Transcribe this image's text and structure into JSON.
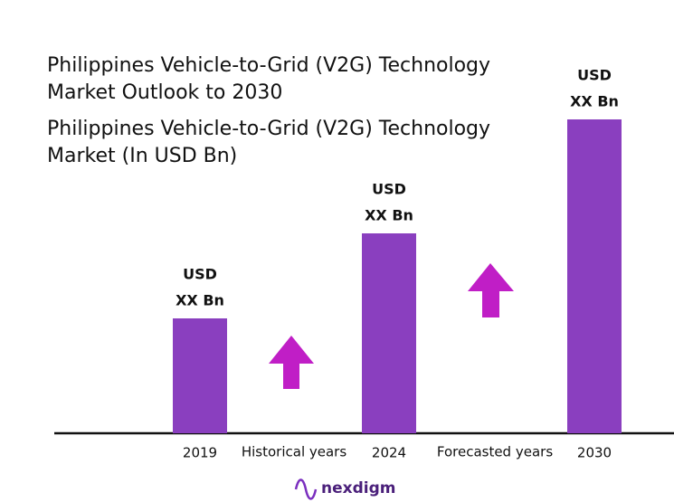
{
  "chart_data": {
    "type": "bar",
    "title": "Philippines Vehicle-to-Grid (V2G) Technology Market Outlook to 2030",
    "subtitle": "Philippines Vehicle-to-Grid (V2G) Technology Market (In USD Bn)",
    "categories": [
      "2019",
      "2024",
      "2030"
    ],
    "values": [
      127,
      221,
      347
    ],
    "bar_labels": [
      [
        "USD",
        "XX Bn"
      ],
      [
        "USD",
        "XX Bn"
      ],
      [
        "USD",
        "XX Bn"
      ]
    ],
    "period_labels": [
      "Historical years",
      "Forecasted years"
    ],
    "color": "#8a3fbf",
    "ylim": [
      0,
      350
    ],
    "brand": "nexdigm"
  }
}
